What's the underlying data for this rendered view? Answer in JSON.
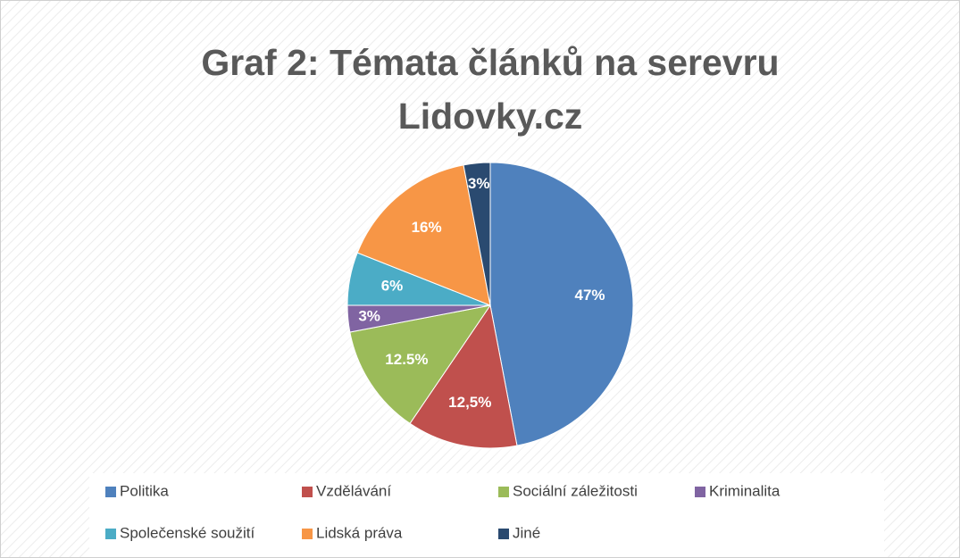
{
  "chart_data": {
    "type": "pie",
    "title": "Graf 2: Témata článků na serevru Lidovky.cz",
    "categories": [
      "Politika",
      "Vzdělávání",
      "Sociální záležitosti",
      "Kriminalita",
      "Společenské soužití",
      "Lidská práva",
      "Jiné"
    ],
    "values": [
      47,
      12.5,
      12.5,
      3,
      6,
      16,
      3
    ],
    "value_labels": [
      "47%",
      "12,5%",
      "12.5%",
      "3%",
      "6%",
      "16%",
      "3%"
    ],
    "colors": [
      "#4f81bd",
      "#c0504d",
      "#9bbb59",
      "#8064a2",
      "#4bacc6",
      "#f79646",
      "#2a4a70"
    ],
    "legend": "bottom"
  }
}
